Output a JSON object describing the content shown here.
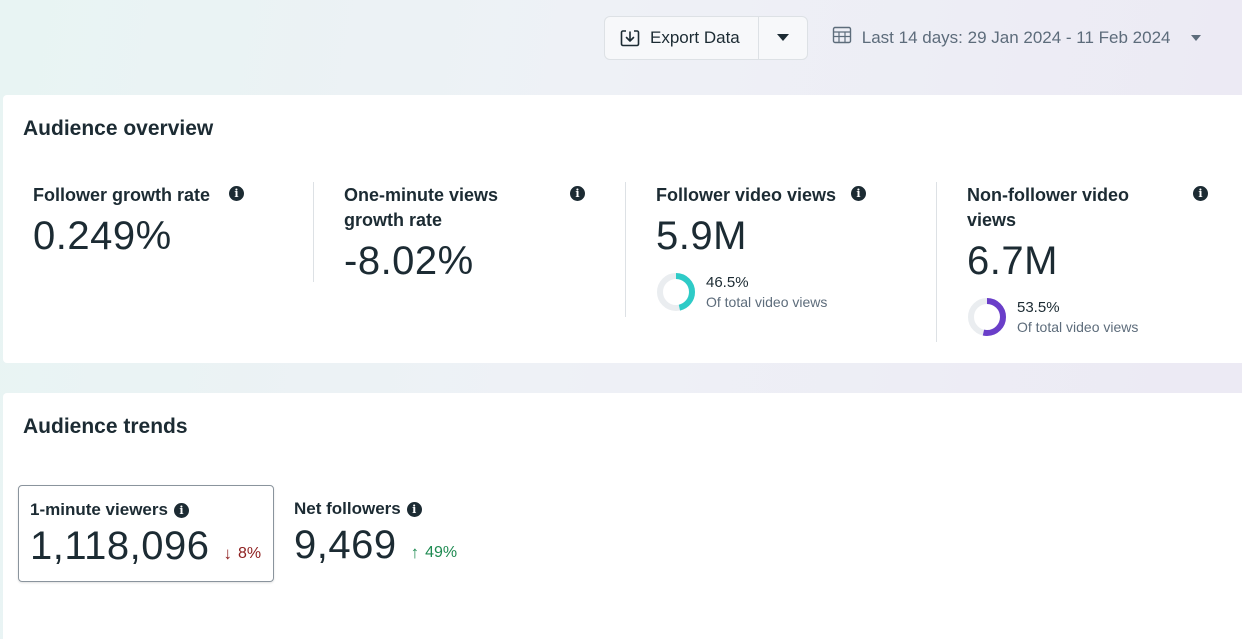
{
  "toolbar": {
    "export_label": "Export Data",
    "date_range_label": "Last 14 days: 29 Jan 2024 - 11 Feb 2024"
  },
  "overview": {
    "title": "Audience overview",
    "metrics": [
      {
        "label": "Follower growth rate",
        "value": "0.249%"
      },
      {
        "label": "One-minute views growth rate",
        "value": "-8.02%"
      },
      {
        "label": "Follower video views",
        "value": "5.9M",
        "share_pct": "46.5%",
        "share_fraction": 0.465,
        "share_sub": "Of total video views",
        "share_color": "#2ecbc7"
      },
      {
        "label": "Non-follower video views",
        "value": "6.7M",
        "share_pct": "53.5%",
        "share_fraction": 0.535,
        "share_sub": "Of total video views",
        "share_color": "#6a3ec9"
      }
    ]
  },
  "trends": {
    "title": "Audience trends",
    "tiles": [
      {
        "label": "1-minute viewers",
        "value": "1,118,096",
        "delta": "8%",
        "direction": "down",
        "arrow": "↓"
      },
      {
        "label": "Net followers",
        "value": "9,469",
        "delta": "49%",
        "direction": "up",
        "arrow": "↑"
      }
    ]
  },
  "colors": {
    "text": "#1c2b33",
    "down": "#8d1e1e",
    "up": "#1e8a51",
    "ring_track": "#eaedf0"
  }
}
